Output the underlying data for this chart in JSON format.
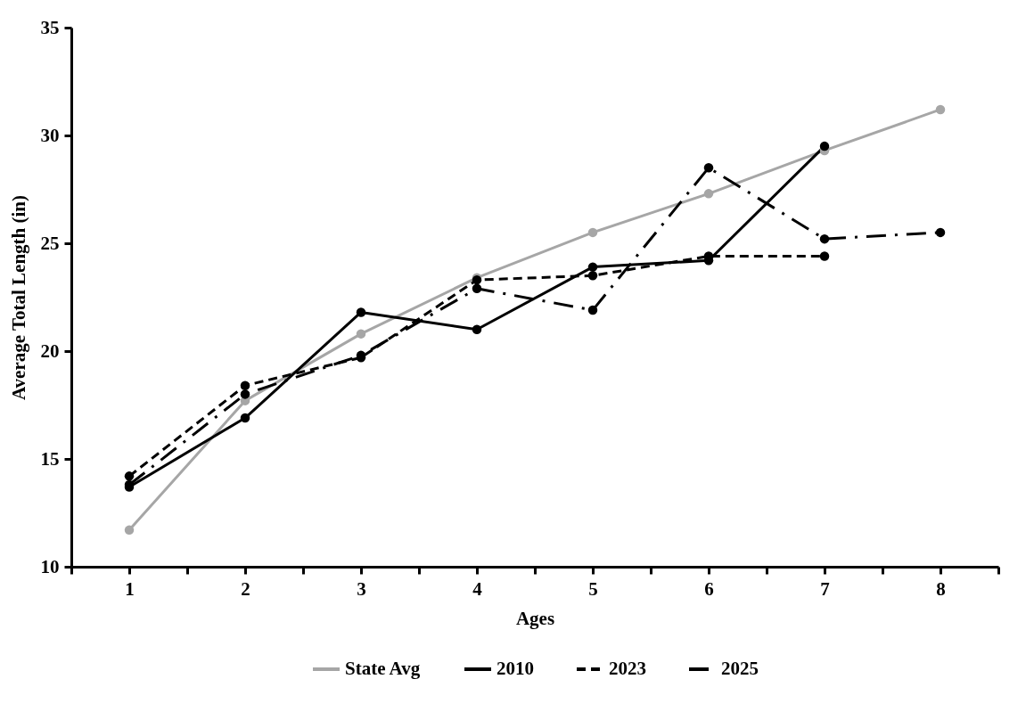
{
  "chart_data": {
    "type": "line",
    "xlabel": "Ages",
    "ylabel": "Average Total Length (in)",
    "x": [
      1,
      2,
      3,
      4,
      5,
      6,
      7,
      8
    ],
    "series": [
      {
        "name": "State Avg",
        "color": "#a6a6a6",
        "line_style": "solid",
        "values": [
          11.7,
          17.7,
          20.8,
          23.4,
          25.5,
          27.3,
          29.3,
          31.2
        ]
      },
      {
        "name": "2010",
        "color": "#000000",
        "line_style": "solid",
        "values": [
          13.7,
          16.9,
          21.8,
          21.0,
          23.9,
          24.2,
          29.5,
          null
        ]
      },
      {
        "name": "2023",
        "color": "#000000",
        "line_style": "dashed",
        "values": [
          14.2,
          18.4,
          19.7,
          23.3,
          23.5,
          24.4,
          24.4,
          null
        ]
      },
      {
        "name": "2025",
        "color": "#000000",
        "line_style": "dashdot",
        "values": [
          13.8,
          18.0,
          19.8,
          22.9,
          21.9,
          28.5,
          25.2,
          25.5
        ]
      }
    ],
    "xlim": [
      0.5,
      8.5
    ],
    "xticks": [
      {
        "value": 0.5,
        "label": null
      },
      1,
      {
        "value": 1.5,
        "label": null
      },
      2,
      {
        "value": 2.5,
        "label": null
      },
      3,
      {
        "value": 3.5,
        "label": null
      },
      4,
      {
        "value": 4.5,
        "label": null
      },
      5,
      {
        "value": 5.5,
        "label": null
      },
      6,
      {
        "value": 6.5,
        "label": null
      },
      7,
      {
        "value": 7.5,
        "label": null
      },
      8,
      {
        "value": 8.5,
        "label": null
      }
    ],
    "ylim": [
      10,
      35
    ],
    "yticks": [
      10,
      15,
      20,
      25,
      30,
      35
    ],
    "grid": false,
    "legend": "bottom",
    "marker": "circle"
  }
}
